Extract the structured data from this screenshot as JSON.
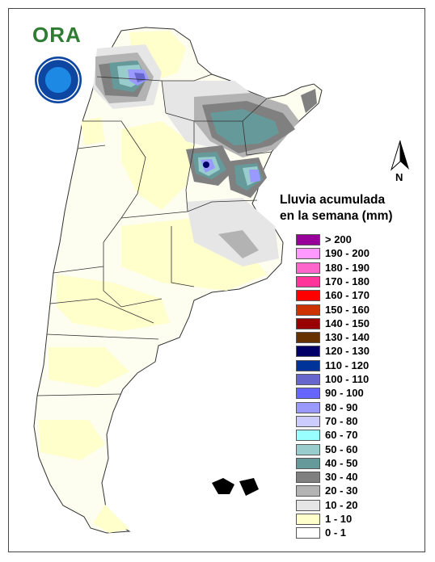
{
  "logo": {
    "text": "ORA",
    "seal_color": "#0d47a1"
  },
  "north_label": "N",
  "legend": {
    "title_line1": "Lluvia acumulada",
    "title_line2": "en la semana (mm)",
    "items": [
      {
        "label": "> 200",
        "color": "#990099"
      },
      {
        "label": "190 - 200",
        "color": "#ff99ff"
      },
      {
        "label": "180 - 190",
        "color": "#ff66cc"
      },
      {
        "label": "170 - 180",
        "color": "#ff3399"
      },
      {
        "label": "160 - 170",
        "color": "#ff0000"
      },
      {
        "label": "150 - 160",
        "color": "#cc3300"
      },
      {
        "label": "140 - 150",
        "color": "#990000"
      },
      {
        "label": "130 - 140",
        "color": "#663300"
      },
      {
        "label": "120 - 130",
        "color": "#000066"
      },
      {
        "label": "110 - 120",
        "color": "#003399"
      },
      {
        "label": "100 - 110",
        "color": "#6666cc"
      },
      {
        "label": "90 - 100",
        "color": "#6666ff"
      },
      {
        "label": "80 - 90",
        "color": "#9999ff"
      },
      {
        "label": "70 - 80",
        "color": "#ccccff"
      },
      {
        "label": "60 - 70",
        "color": "#99ffff"
      },
      {
        "label": "50 - 60",
        "color": "#99cccc"
      },
      {
        "label": "40 - 50",
        "color": "#669999"
      },
      {
        "label": "30 - 40",
        "color": "#808080"
      },
      {
        "label": "20 - 30",
        "color": "#b3b3b3"
      },
      {
        "label": "10 - 20",
        "color": "#e6e6e6"
      },
      {
        "label": "1 - 10",
        "color": "#ffffcc"
      },
      {
        "label": "0 - 1",
        "color": "#ffffff"
      }
    ]
  }
}
